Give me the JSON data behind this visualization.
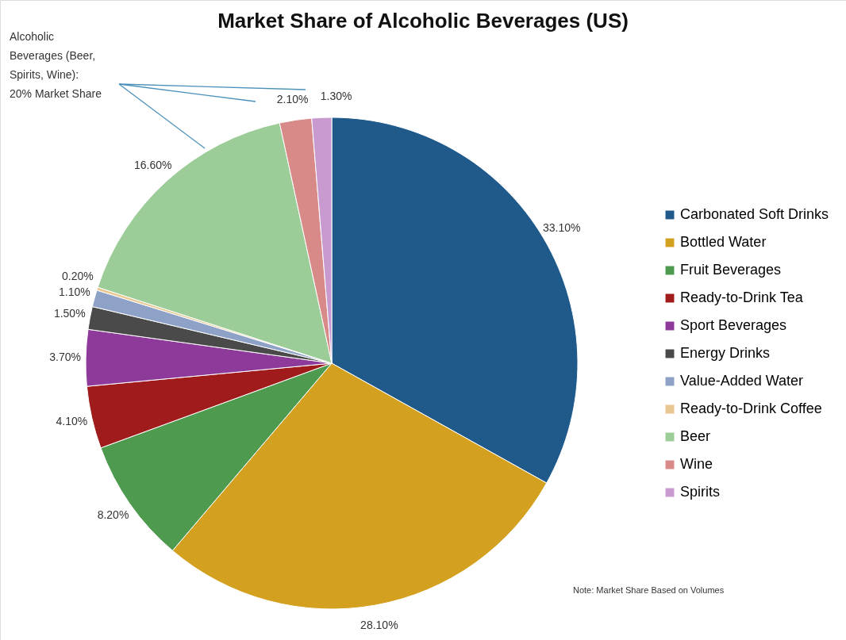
{
  "chart_data": {
    "type": "pie",
    "title": "Market Share of Alcoholic Beverages (US)",
    "categories": [
      "Carbonated Soft Drinks",
      "Bottled Water",
      "Fruit Beverages",
      "Ready-to-Drink Tea",
      "Sport Beverages",
      "Energy Drinks",
      "Value-Added Water",
      "Ready-to-Drink Coffee",
      "Beer",
      "Wine",
      "Spirits"
    ],
    "values": [
      33.1,
      28.1,
      8.2,
      4.1,
      3.7,
      1.5,
      1.1,
      0.2,
      16.6,
      2.1,
      1.3
    ],
    "colors": [
      "#1f5a8a",
      "#d4a020",
      "#4e9a4e",
      "#a01c1c",
      "#8e3a9a",
      "#4a4a4a",
      "#8ea2c8",
      "#e8c890",
      "#9ccc98",
      "#d88a88",
      "#c89ad0"
    ],
    "value_labels": [
      "33.10%",
      "28.10%",
      "8.20%",
      "4.10%",
      "3.70%",
      "1.50%",
      "1.10%",
      "0.20%",
      "16.60%",
      "2.10%",
      "1.30%"
    ],
    "legend": "right",
    "annotations": [
      "Alcoholic Beverages (Beer, Spirits, Wine): 20% Market Share",
      "Note: Market Share Based on Volumes"
    ]
  }
}
